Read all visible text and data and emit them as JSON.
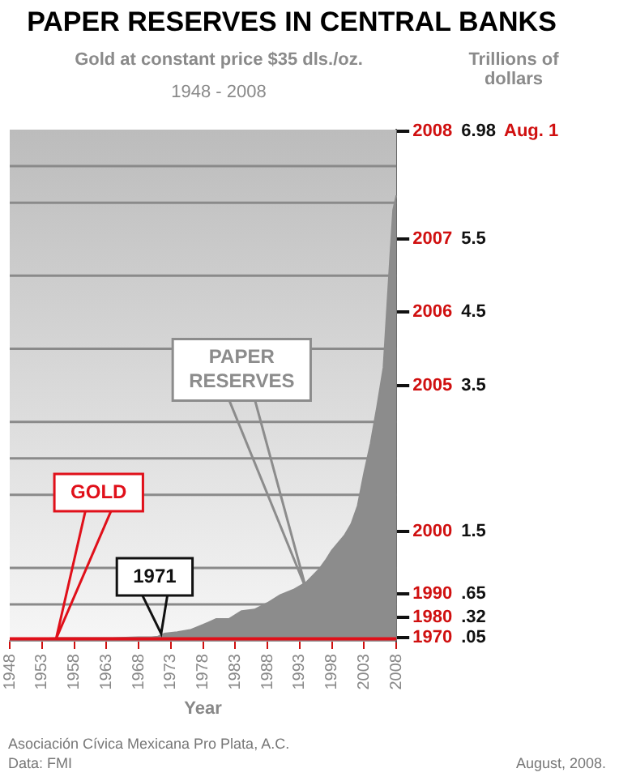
{
  "chart_data": {
    "type": "area",
    "title": "PAPER RESERVES IN CENTRAL BANKS",
    "subtitle": "Gold at constant price $35 dls./oz.",
    "xlabel": "Year",
    "ylabel": "Trillions of dollars",
    "xlim": [
      1948,
      2008
    ],
    "xticks": [
      1948,
      1953,
      1958,
      1963,
      1968,
      1973,
      1978,
      1983,
      1988,
      1993,
      1998,
      2003,
      2008
    ],
    "ylim": [
      0,
      7
    ],
    "yticks": [
      {
        "value": 0.05,
        "label": ".05"
      },
      {
        "value": 0.32,
        "label": ".32"
      },
      {
        "value": 0.5,
        "label": null
      },
      {
        "value": 0.65,
        "label": ".65"
      },
      {
        "value": 1,
        "label": null
      },
      1.5,
      {
        "value": 2,
        "label": null
      },
      {
        "value": 2.5,
        "label": null
      },
      {
        "value": 3,
        "label": null
      },
      3.5,
      {
        "value": 4,
        "label": null
      },
      4.5,
      {
        "value": 5,
        "label": null
      },
      5.5,
      {
        "value": 6,
        "label": null
      },
      {
        "value": 6.5,
        "label": null
      },
      6.98
    ],
    "grid": "y",
    "legend": false,
    "series": [
      {
        "name": "PAPER RESERVES",
        "color": "#8c8c8c",
        "x": [
          1948,
          1952,
          1956,
          1960,
          1964,
          1968,
          1970,
          1971,
          1972,
          1974,
          1976,
          1978,
          1980,
          1982,
          1984,
          1986,
          1988,
          1990,
          1992,
          1994,
          1996,
          1997,
          1998,
          2000,
          2001,
          2002,
          2003,
          2004,
          2005,
          2006,
          2007,
          2007.5,
          2008
        ],
        "values": [
          0.03,
          0.03,
          0.04,
          0.04,
          0.04,
          0.05,
          0.05,
          0.06,
          0.1,
          0.12,
          0.15,
          0.22,
          0.3,
          0.3,
          0.41,
          0.43,
          0.52,
          0.63,
          0.7,
          0.8,
          0.98,
          1.1,
          1.24,
          1.45,
          1.6,
          1.85,
          2.3,
          2.7,
          3.2,
          3.74,
          5.2,
          5.9,
          6.1
        ]
      },
      {
        "name": "GOLD",
        "type": "line",
        "color": "#e0101a",
        "x": [
          1948,
          2008
        ],
        "values": [
          0.03,
          0.03
        ]
      }
    ],
    "annotations": [
      "1948 - 2008",
      "Aug. 1",
      {
        "text": "1971",
        "x": 1971.5,
        "y": 0.1
      },
      "1970",
      "1980",
      "1990",
      "2000",
      "2005",
      "2006",
      "2007",
      "2008",
      "Asociación Cívica Mexicana Pro Plata, A.C.",
      "Data: FMI",
      "August, 2008."
    ]
  }
}
